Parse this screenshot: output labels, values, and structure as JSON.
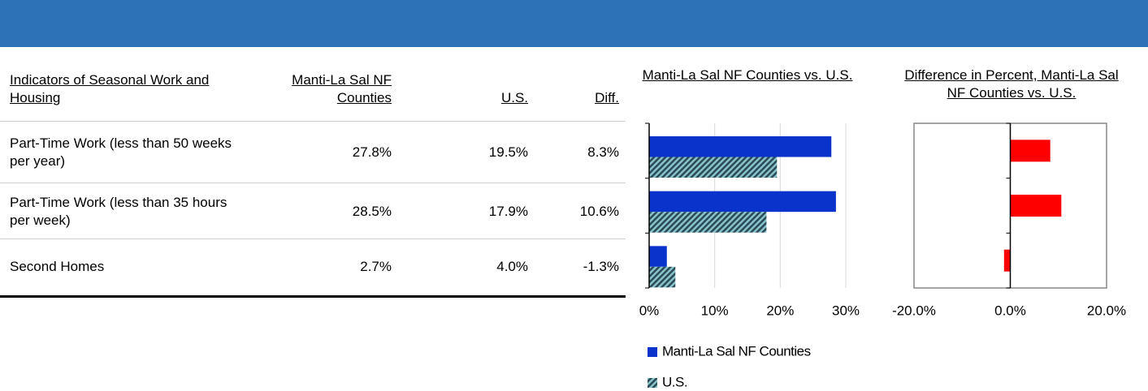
{
  "table": {
    "columns": [
      "Indicators of Seasonal Work and Housing",
      "Manti-La Sal NF Counties",
      "U.S.",
      "Diff."
    ],
    "rows": [
      [
        "Part-Time Work (less than 50 weeks per year)",
        "27.8%",
        "19.5%",
        "8.3%"
      ],
      [
        "Part-Time Work (less than 35 hours per week)",
        "28.5%",
        "17.9%",
        "10.6%"
      ],
      [
        "Second Homes",
        "2.7%",
        "4.0%",
        "-1.3%"
      ]
    ]
  },
  "chart_data": [
    {
      "type": "bar",
      "orientation": "horizontal",
      "title": "Manti-La Sal NF Counties vs. U.S.",
      "categories": [
        null,
        null,
        null
      ],
      "series": [
        {
          "name": "Manti-La Sal NF Counties",
          "color": "#0a33cc",
          "values": [
            27.8,
            28.5,
            2.7
          ]
        },
        {
          "name": "U.S.",
          "color": "#86c3cb",
          "pattern": "hatch",
          "values": [
            19.5,
            17.9,
            4.0
          ]
        }
      ],
      "xlim": [
        0,
        30
      ],
      "xticks": [
        {
          "value": 0,
          "label": "0%"
        },
        {
          "value": 10,
          "label": "10%"
        },
        {
          "value": 20,
          "label": "20%"
        },
        {
          "value": 30,
          "label": "30%"
        }
      ],
      "grid": true,
      "legend": "bottom"
    },
    {
      "type": "bar",
      "orientation": "horizontal",
      "title": "Difference in Percent, Manti-La Sal NF Counties vs. U.S.",
      "categories": [
        null,
        null,
        null
      ],
      "series": [
        {
          "color": "#ff0000",
          "values": [
            8.3,
            10.6,
            -1.3
          ]
        }
      ],
      "xlim": [
        -20,
        20
      ],
      "xticks": [
        {
          "value": -20,
          "label": "-20.0%"
        },
        {
          "value": 0,
          "label": "0.0%"
        },
        {
          "value": 20,
          "label": "20.0%"
        }
      ],
      "grid": false
    }
  ]
}
